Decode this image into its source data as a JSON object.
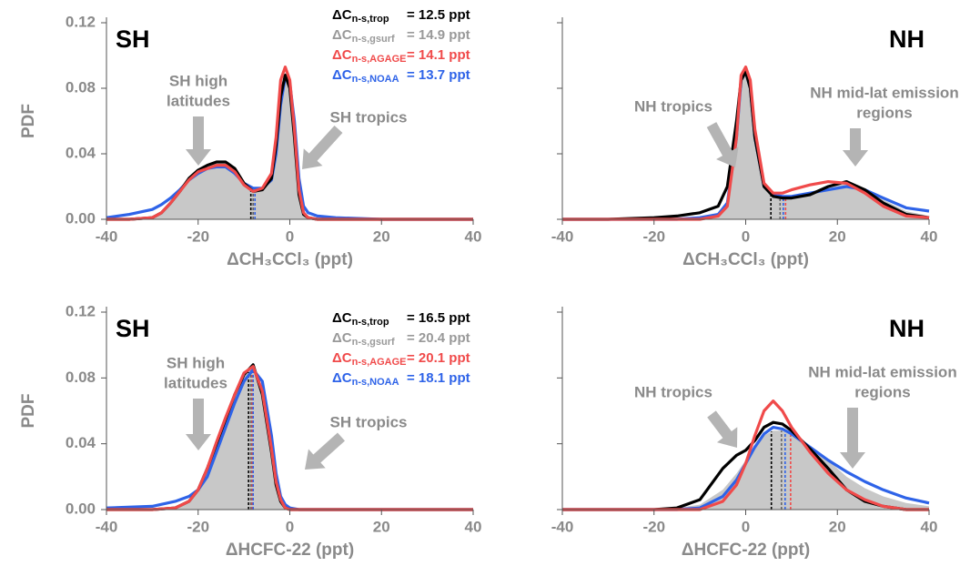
{
  "chart_data": [
    {
      "type": "line",
      "region": "SH",
      "xlabel": "ΔCH₃CCl₃ (ppt)",
      "ylabel": "PDF",
      "xlim": [
        -40,
        40
      ],
      "xticks": [
        -40,
        -20,
        0,
        20,
        40
      ],
      "ylim": [
        0,
        0.12
      ],
      "yticks": [
        {
          "value": 0,
          "label": "0.00"
        },
        {
          "value": 0.04,
          "label": "0.04"
        },
        {
          "value": 0.08,
          "label": "0.08"
        },
        {
          "value": 0.12,
          "label": "0.12"
        }
      ],
      "annotations": [
        [
          "SH high",
          "latitudes"
        ],
        [
          "SH tropics"
        ]
      ],
      "x": [
        -40,
        -35,
        -30,
        -28,
        -26,
        -24,
        -22,
        -20,
        -18,
        -16,
        -14,
        -12,
        -10,
        -8,
        -6,
        -4,
        -3,
        -2,
        -1,
        0,
        1,
        2,
        3,
        4,
        6,
        10,
        20,
        30,
        40
      ],
      "series": [
        {
          "name": "ΔC",
          "subscript": "n-s,trop",
          "legend": "= 12.5 ppt",
          "color": "#000000",
          "mean": -8.5,
          "values": [
            0,
            0,
            0.001,
            0.004,
            0.01,
            0.017,
            0.025,
            0.03,
            0.033,
            0.035,
            0.035,
            0.031,
            0.022,
            0.017,
            0.018,
            0.025,
            0.045,
            0.075,
            0.088,
            0.08,
            0.05,
            0.015,
            0.003,
            0.001,
            0,
            0,
            0,
            0,
            0
          ]
        },
        {
          "name": "ΔC",
          "subscript": "n-s,gsurf",
          "legend": "= 14.9 ppt",
          "color": "#999999",
          "mean": -8,
          "values": [
            0,
            0,
            0.001,
            0.004,
            0.01,
            0.017,
            0.025,
            0.03,
            0.033,
            0.034,
            0.034,
            0.03,
            0.022,
            0.017,
            0.018,
            0.026,
            0.048,
            0.078,
            0.09,
            0.082,
            0.055,
            0.02,
            0.005,
            0.001,
            0,
            0,
            0,
            0,
            0
          ]
        },
        {
          "name": "ΔC",
          "subscript": "n-s,AGAGE",
          "legend": "= 14.1 ppt",
          "color": "#f04a4a",
          "mean": -7.6,
          "values": [
            0,
            0,
            0.001,
            0.004,
            0.01,
            0.017,
            0.024,
            0.029,
            0.031,
            0.033,
            0.033,
            0.029,
            0.021,
            0.017,
            0.019,
            0.028,
            0.05,
            0.085,
            0.093,
            0.085,
            0.055,
            0.018,
            0.004,
            0.001,
            0,
            0,
            0,
            0,
            0
          ]
        },
        {
          "name": "ΔC",
          "subscript": "n-s,NOAA",
          "legend": "= 13.7 ppt",
          "color": "#2e63e8",
          "mean": -7.6,
          "values": [
            0.001,
            0.003,
            0.006,
            0.009,
            0.013,
            0.018,
            0.024,
            0.028,
            0.031,
            0.032,
            0.032,
            0.028,
            0.022,
            0.019,
            0.019,
            0.024,
            0.04,
            0.07,
            0.087,
            0.083,
            0.06,
            0.025,
            0.008,
            0.004,
            0.002,
            0.001,
            0,
            0,
            0
          ]
        }
      ]
    },
    {
      "type": "line",
      "region": "NH",
      "xlabel": "ΔCH₃CCl₃ (ppt)",
      "xlim": [
        -40,
        40
      ],
      "xticks": [
        -40,
        -20,
        0,
        20,
        40
      ],
      "ylim": [
        0,
        0.12
      ],
      "yticks": [
        0,
        0.04,
        0.08,
        0.12
      ],
      "annotations": [
        [
          "NH tropics"
        ],
        [
          "NH mid-lat emission",
          "regions"
        ]
      ],
      "x": [
        -40,
        -30,
        -20,
        -15,
        -10,
        -6,
        -4,
        -2,
        -1,
        0,
        1,
        2,
        4,
        6,
        8,
        10,
        14,
        18,
        22,
        26,
        30,
        35,
        40
      ],
      "series": [
        {
          "color": "#000000",
          "mean": 5.5,
          "values": [
            0,
            0,
            0.001,
            0.002,
            0.004,
            0.008,
            0.02,
            0.06,
            0.085,
            0.09,
            0.08,
            0.05,
            0.02,
            0.014,
            0.013,
            0.013,
            0.015,
            0.02,
            0.023,
            0.018,
            0.01,
            0.003,
            0.001
          ]
        },
        {
          "color": "#999999",
          "mean": 7.5,
          "values": [
            0,
            0,
            0,
            0,
            0.001,
            0.003,
            0.01,
            0.05,
            0.085,
            0.092,
            0.085,
            0.055,
            0.022,
            0.015,
            0.014,
            0.014,
            0.016,
            0.02,
            0.023,
            0.019,
            0.012,
            0.005,
            0.002
          ]
        },
        {
          "color": "#f04a4a",
          "mean": 8.7,
          "values": [
            0,
            0,
            0,
            0,
            0,
            0.002,
            0.008,
            0.05,
            0.088,
            0.093,
            0.085,
            0.055,
            0.022,
            0.016,
            0.016,
            0.018,
            0.021,
            0.023,
            0.022,
            0.016,
            0.008,
            0.002,
            0.001
          ]
        },
        {
          "color": "#2e63e8",
          "mean": 8.2,
          "values": [
            0,
            0,
            0,
            0,
            0.001,
            0.003,
            0.01,
            0.05,
            0.085,
            0.09,
            0.08,
            0.05,
            0.02,
            0.015,
            0.014,
            0.014,
            0.016,
            0.018,
            0.02,
            0.018,
            0.013,
            0.007,
            0.005
          ]
        }
      ]
    },
    {
      "type": "line",
      "region": "SH",
      "xlabel": "ΔHCFC-22 (ppt)",
      "ylabel": "PDF",
      "xlim": [
        -40,
        40
      ],
      "xticks": [
        -40,
        -20,
        0,
        20,
        40
      ],
      "ylim": [
        0,
        0.12
      ],
      "yticks": [
        {
          "value": 0,
          "label": "0.00"
        },
        {
          "value": 0.04,
          "label": "0.04"
        },
        {
          "value": 0.08,
          "label": "0.08"
        },
        {
          "value": 0.12,
          "label": "0.12"
        }
      ],
      "annotations": [
        [
          "SH high",
          "latitudes"
        ],
        [
          "SH tropics"
        ]
      ],
      "x": [
        -40,
        -30,
        -25,
        -22,
        -20,
        -18,
        -16,
        -14,
        -12,
        -10,
        -8,
        -6,
        -4,
        -3,
        -2,
        -1,
        0,
        2,
        10,
        20,
        30,
        40
      ],
      "series": [
        {
          "name": "ΔC",
          "subscript": "n-s,trop",
          "legend": "= 16.5 ppt",
          "color": "#000000",
          "mean": -9,
          "values": [
            0,
            0,
            0.001,
            0.005,
            0.012,
            0.025,
            0.04,
            0.055,
            0.07,
            0.082,
            0.088,
            0.07,
            0.035,
            0.015,
            0.005,
            0.001,
            0,
            0,
            0,
            0,
            0,
            0
          ]
        },
        {
          "name": "ΔC",
          "subscript": "n-s,gsurf",
          "legend": "= 20.4 ppt",
          "color": "#999999",
          "mean": -8.5,
          "values": [
            0,
            0,
            0.001,
            0.005,
            0.013,
            0.026,
            0.041,
            0.056,
            0.07,
            0.081,
            0.086,
            0.075,
            0.04,
            0.02,
            0.007,
            0.002,
            0,
            0,
            0,
            0,
            0,
            0
          ]
        },
        {
          "name": "ΔC",
          "subscript": "n-s,AGAGE",
          "legend": "= 20.1 ppt",
          "color": "#f04a4a",
          "mean": -8.2,
          "values": [
            0,
            0,
            0.001,
            0.005,
            0.012,
            0.025,
            0.041,
            0.056,
            0.07,
            0.083,
            0.087,
            0.072,
            0.037,
            0.017,
            0.006,
            0.001,
            0,
            0,
            0,
            0,
            0,
            0
          ]
        },
        {
          "name": "ΔC",
          "subscript": "n-s,NOAA",
          "legend": "= 18.1 ppt",
          "color": "#2e63e8",
          "mean": -8,
          "values": [
            0.001,
            0.002,
            0.005,
            0.008,
            0.012,
            0.02,
            0.035,
            0.05,
            0.065,
            0.078,
            0.085,
            0.078,
            0.045,
            0.022,
            0.008,
            0.003,
            0.001,
            0,
            0,
            0,
            0,
            0
          ]
        }
      ]
    },
    {
      "type": "line",
      "region": "NH",
      "xlabel": "ΔHCFC-22 (ppt)",
      "xlim": [
        -40,
        40
      ],
      "xticks": [
        -40,
        -20,
        0,
        20,
        40
      ],
      "ylim": [
        0,
        0.12
      ],
      "yticks": [
        0,
        0.04,
        0.08,
        0.12
      ],
      "annotations": [
        [
          "NH tropics"
        ],
        [
          "NH mid-lat emission",
          "regions"
        ]
      ],
      "x": [
        -40,
        -20,
        -15,
        -10,
        -5,
        -2,
        0,
        2,
        4,
        6,
        8,
        10,
        14,
        18,
        22,
        26,
        30,
        35,
        40
      ],
      "series": [
        {
          "color": "#000000",
          "mean": 5.6,
          "values": [
            0,
            0,
            0.001,
            0.006,
            0.025,
            0.033,
            0.036,
            0.042,
            0.05,
            0.053,
            0.052,
            0.048,
            0.037,
            0.025,
            0.012,
            0.005,
            0.002,
            0,
            0
          ]
        },
        {
          "color": "#999999",
          "mean": 7.8,
          "values": [
            0,
            0,
            0.001,
            0.003,
            0.012,
            0.022,
            0.03,
            0.038,
            0.045,
            0.048,
            0.048,
            0.045,
            0.038,
            0.03,
            0.02,
            0.013,
            0.008,
            0.004,
            0.002
          ]
        },
        {
          "color": "#f04a4a",
          "mean": 9.8,
          "values": [
            0,
            0,
            0,
            0,
            0.005,
            0.015,
            0.028,
            0.045,
            0.06,
            0.066,
            0.06,
            0.05,
            0.035,
            0.022,
            0.012,
            0.006,
            0.002,
            0,
            0
          ]
        },
        {
          "color": "#2e63e8",
          "mean": 8.6,
          "values": [
            0,
            0,
            0,
            0.001,
            0.008,
            0.018,
            0.028,
            0.038,
            0.046,
            0.05,
            0.049,
            0.046,
            0.038,
            0.03,
            0.023,
            0.017,
            0.012,
            0.007,
            0.004
          ]
        }
      ]
    }
  ]
}
